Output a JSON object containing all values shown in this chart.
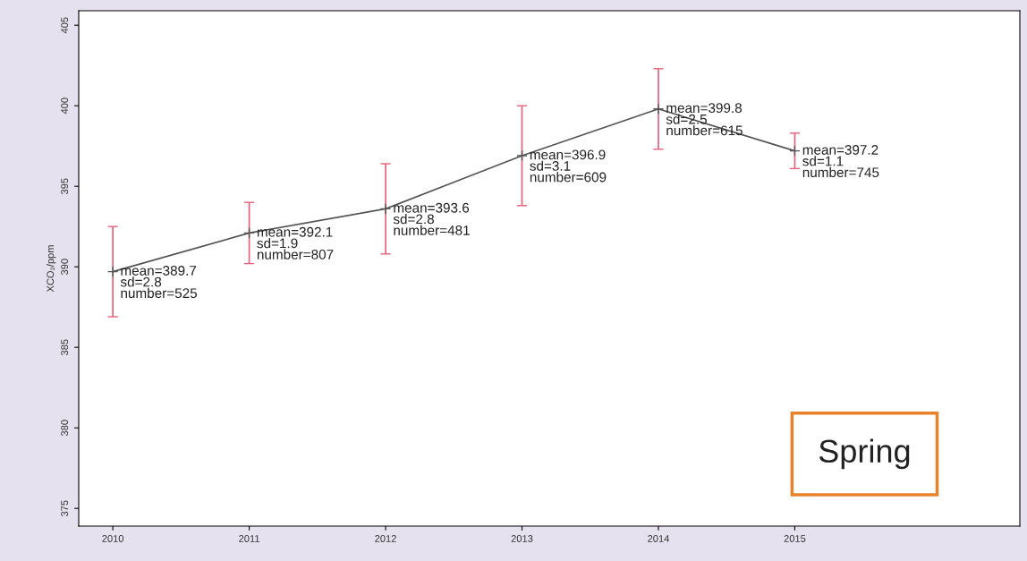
{
  "chart_data": {
    "type": "line",
    "ylabel": "XCO₂/ppm",
    "x": [
      2010,
      2011,
      2012,
      2013,
      2014,
      2015
    ],
    "series": [
      {
        "color": "#555555",
        "values": [
          389.7,
          392.1,
          393.6,
          396.9,
          399.8,
          397.2
        ],
        "errors": [
          2.8,
          1.9,
          2.8,
          3.1,
          2.5,
          1.1
        ]
      }
    ],
    "xlim": [
      2009.75,
      2016.65
    ],
    "ylim": [
      373.9,
      405.9
    ],
    "xticks": [
      2010,
      2011,
      2012,
      2013,
      2014,
      2015
    ],
    "yticks": [
      375,
      380,
      385,
      390,
      395,
      400,
      405
    ],
    "marker": "cross",
    "line_style": "solid",
    "grid": false,
    "legend": false,
    "annotations": [
      {
        "text": "mean=389.7\nsd=2.8\nnumber=525",
        "x": 2010,
        "y": 389.7
      },
      {
        "text": "mean=392.1\nsd=1.9\nnumber=807",
        "x": 2011,
        "y": 392.1
      },
      {
        "text": "mean=393.6\nsd=2.8\nnumber=481",
        "x": 2012,
        "y": 393.6
      },
      {
        "text": "mean=396.9\nsd=3.1\nnumber=609",
        "x": 2013,
        "y": 396.9
      },
      {
        "text": "mean=399.8\nsd=2.5\nnumber=615",
        "x": 2014,
        "y": 399.8
      },
      {
        "text": "mean=397.2\nsd=1.1\nnumber=745",
        "x": 2015,
        "y": 397.2
      },
      "Spring"
    ]
  }
}
